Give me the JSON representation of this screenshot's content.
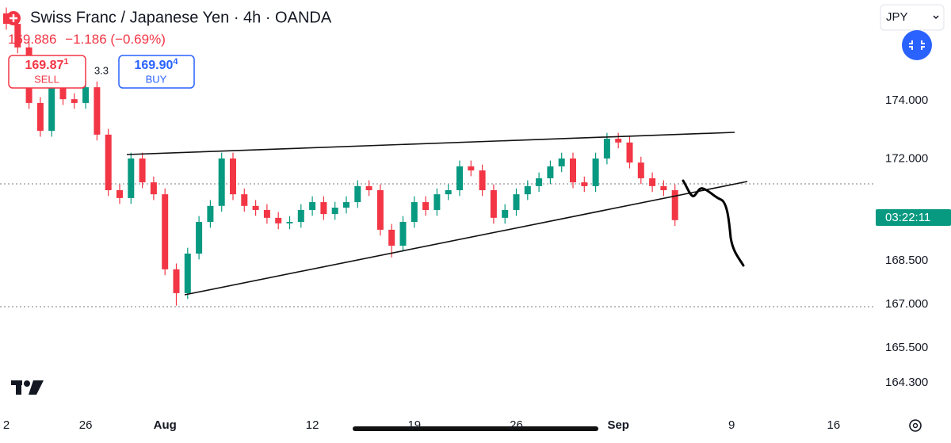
{
  "header": {
    "title": "Swiss Franc / Japanese Yen · 4h · OANDA",
    "last_price": "169.886",
    "change": "−1.186",
    "change_pct": "(−0.69%)"
  },
  "trade": {
    "sell": {
      "price": "169.87",
      "pip": "1",
      "label": "SELL"
    },
    "spread": "3.3",
    "buy": {
      "price": "169.90",
      "pip": "4",
      "label": "BUY"
    }
  },
  "currency": "JPY",
  "countdown": "03:22:11",
  "chart_data": {
    "type": "candlestick",
    "categories": [
      "2",
      null,
      null,
      null,
      null,
      null,
      null,
      "26",
      null,
      null,
      null,
      null,
      null,
      null,
      "Aug",
      null,
      null,
      null,
      null,
      null,
      null,
      null,
      null,
      null,
      null,
      null,
      null,
      "12",
      null,
      null,
      null,
      null,
      null,
      null,
      null,
      null,
      "19",
      null,
      null,
      null,
      null,
      null,
      null,
      null,
      null,
      "26",
      null,
      null,
      null,
      null,
      null,
      null,
      null,
      null,
      "Sep",
      null,
      null,
      null,
      null,
      null,
      null,
      null,
      null,
      null,
      "9",
      null,
      null,
      null,
      null,
      null,
      null,
      null,
      null,
      "16"
    ],
    "open": [
      177.0,
      176.64,
      175.83,
      173.92,
      172.96,
      174.46,
      174.05,
      173.92,
      174.46,
      172.83,
      170.92,
      170.65,
      172.01,
      171.19,
      170.78,
      168.2,
      167.38,
      168.74,
      169.83,
      170.38,
      172.01,
      170.78,
      170.38,
      170.24,
      169.97,
      169.78,
      169.83,
      170.24,
      170.51,
      170.1,
      170.32,
      170.51,
      171.06,
      170.92,
      169.56,
      169.01,
      169.83,
      170.51,
      170.24,
      170.78,
      170.92,
      171.74,
      171.6,
      170.92,
      169.97,
      170.24,
      170.78,
      171.06,
      171.33,
      171.74,
      172.01,
      171.19,
      171.06,
      172.01,
      172.69,
      172.56,
      171.87,
      171.33,
      171.06,
      170.92,
      null,
      null,
      null,
      null,
      null,
      null,
      null,
      null,
      null,
      null,
      null,
      null,
      null,
      null
    ],
    "high": [
      177.2,
      176.84,
      176.03,
      174.12,
      174.66,
      174.66,
      174.25,
      174.66,
      174.66,
      173.03,
      171.12,
      172.21,
      172.21,
      171.39,
      170.98,
      168.4,
      168.94,
      170.03,
      170.58,
      172.21,
      172.21,
      170.98,
      170.58,
      170.44,
      170.17,
      170.03,
      170.44,
      170.71,
      170.71,
      170.52,
      170.71,
      171.26,
      171.26,
      171.12,
      169.76,
      170.03,
      170.71,
      170.71,
      170.98,
      171.12,
      171.94,
      171.94,
      171.8,
      171.12,
      170.44,
      170.98,
      171.26,
      171.53,
      171.94,
      172.21,
      172.21,
      171.39,
      172.21,
      172.89,
      172.89,
      172.76,
      172.07,
      171.53,
      171.26,
      171.12,
      null,
      null,
      null,
      null,
      null,
      null,
      null,
      null,
      null,
      null,
      null,
      null,
      null,
      null
    ],
    "low": [
      176.44,
      175.63,
      173.72,
      172.76,
      172.76,
      173.85,
      173.72,
      173.72,
      172.63,
      170.72,
      170.45,
      170.45,
      170.99,
      170.58,
      168.0,
      166.95,
      167.18,
      168.54,
      169.63,
      170.18,
      170.58,
      170.18,
      170.04,
      169.77,
      169.58,
      169.58,
      169.63,
      170.04,
      169.9,
      169.9,
      170.12,
      170.31,
      170.72,
      169.36,
      168.61,
      168.81,
      169.63,
      170.04,
      170.04,
      170.58,
      170.72,
      171.4,
      170.72,
      169.77,
      169.77,
      170.04,
      170.58,
      170.86,
      171.13,
      171.54,
      170.99,
      170.86,
      170.86,
      171.81,
      172.36,
      171.67,
      171.13,
      170.86,
      170.72,
      169.69,
      null,
      null,
      null,
      null,
      null,
      null,
      null,
      null,
      null,
      null,
      null,
      null,
      null,
      null
    ],
    "close": [
      176.64,
      175.83,
      173.92,
      172.96,
      174.46,
      174.05,
      173.92,
      174.46,
      172.83,
      170.92,
      170.65,
      172.01,
      171.19,
      170.78,
      168.2,
      167.38,
      168.74,
      169.83,
      170.38,
      172.01,
      170.78,
      170.38,
      170.24,
      169.97,
      169.78,
      169.83,
      170.24,
      170.51,
      170.1,
      170.32,
      170.51,
      171.06,
      170.92,
      169.56,
      169.01,
      169.83,
      170.51,
      170.24,
      170.78,
      170.92,
      171.74,
      171.6,
      170.92,
      169.97,
      170.24,
      170.78,
      171.06,
      171.33,
      171.74,
      172.01,
      171.19,
      171.06,
      172.01,
      172.69,
      172.56,
      171.87,
      171.33,
      171.06,
      170.92,
      169.89,
      null,
      null,
      null,
      null,
      null,
      null,
      null,
      null,
      null,
      null,
      null,
      null,
      null,
      null
    ],
    "up_color": "#089981",
    "down_color": "#f23645",
    "ylim": [
      163.29,
      177.46
    ],
    "yticks": [
      {
        "value": 174,
        "label": "174.000"
      },
      {
        "value": 172,
        "label": "172.000"
      },
      {
        "value": 168.5,
        "label": "168.500"
      },
      {
        "value": 167,
        "label": "167.000"
      },
      {
        "value": 165.5,
        "label": "165.500"
      },
      {
        "value": 164.3,
        "label": "164.300"
      }
    ],
    "grid": false
  }
}
